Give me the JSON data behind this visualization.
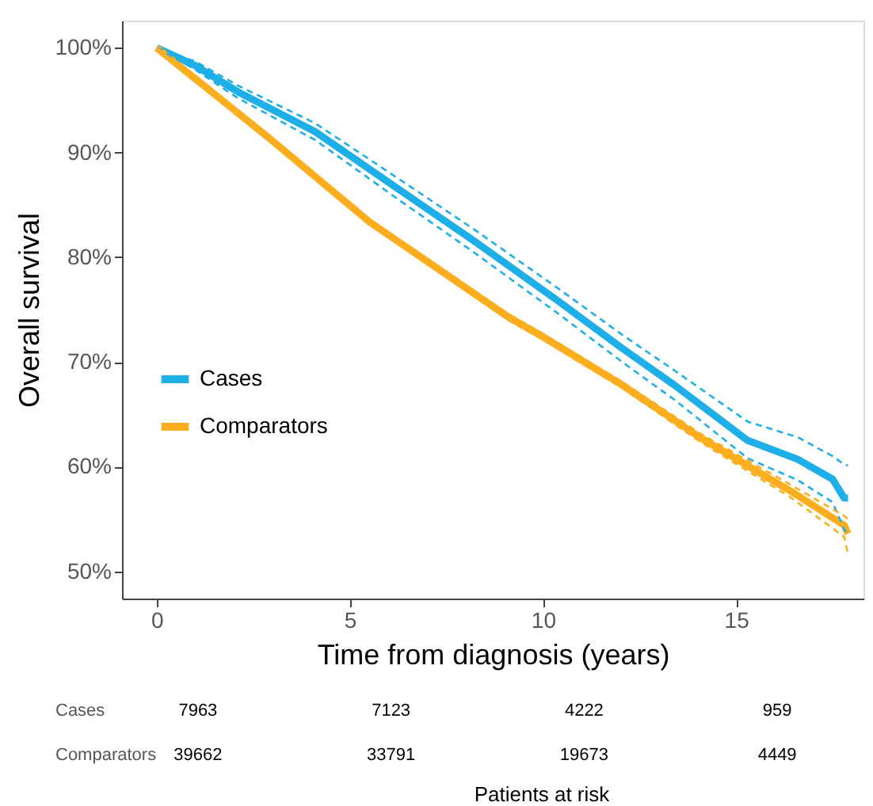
{
  "chart_data": {
    "type": "line",
    "xlabel": "Time from diagnosis (years)",
    "ylabel": "Overall survival",
    "xlim": [
      -0.9,
      18.3
    ],
    "xticks": [
      0,
      5,
      10,
      15
    ],
    "ylim": [
      47.4,
      102.6
    ],
    "yticks": [
      {
        "value": 50,
        "label": "50%"
      },
      {
        "value": 60,
        "label": "60%"
      },
      {
        "value": 70,
        "label": "70%"
      },
      {
        "value": 80,
        "label": "80%"
      },
      {
        "value": 90,
        "label": "90%"
      },
      {
        "value": 100,
        "label": "100%"
      }
    ],
    "series": [
      {
        "name": "Cases",
        "color": "#1eaee8",
        "x": [
          0,
          1,
          2.1,
          4.1,
          6.3,
          8.2,
          10.4,
          12.05,
          13.4,
          15.3,
          16.6,
          17.5,
          17.8,
          17.9
        ],
        "values": [
          100,
          98.3,
          95.8,
          92.0,
          86.4,
          81.6,
          75.8,
          71.3,
          67.8,
          62.5,
          60.7,
          58.8,
          57.0,
          57.0
        ]
      },
      {
        "name": "Comparators",
        "color": "#fcae1e",
        "x": [
          0,
          2.9,
          5.5,
          9.1,
          10,
          12.05,
          14.1,
          16.4,
          17.8,
          17.9
        ],
        "values": [
          100,
          91.4,
          83.4,
          74.3,
          72.4,
          67.8,
          62.7,
          57.7,
          54.4,
          53.6
        ]
      },
      {
        "color": "#1eaee8",
        "line_style": "dashed",
        "x": [
          0,
          1,
          2.1,
          4.1,
          6.3,
          8.2,
          10.4,
          12.05,
          13.4,
          15.3,
          16.6,
          17.5,
          17.8,
          17.9
        ],
        "values": [
          100,
          98.7,
          96.4,
          92.8,
          87.4,
          82.7,
          77.0,
          72.6,
          69.2,
          64.3,
          62.8,
          61.0,
          60.2,
          60.1
        ]
      },
      {
        "color": "#1eaee8",
        "line_style": "dashed",
        "x": [
          0,
          1,
          2.1,
          4.1,
          6.3,
          8.2,
          10.4,
          12.05,
          13.4,
          15.3,
          16.6,
          17.5,
          17.8,
          17.9
        ],
        "values": [
          100,
          97.9,
          95.2,
          91.2,
          85.4,
          80.5,
          74.6,
          70.0,
          66.4,
          60.8,
          58.7,
          56.6,
          54.0,
          53.6
        ]
      },
      {
        "color": "#fcae1e",
        "line_style": "dashed",
        "x": [
          0,
          2.9,
          5.5,
          9.1,
          10,
          12.05,
          14.1,
          16.4,
          17.8,
          17.9
        ],
        "values": [
          100,
          91.6,
          83.6,
          74.6,
          72.7,
          68.1,
          63.1,
          58.3,
          55.3,
          55.0
        ]
      },
      {
        "color": "#fcae1e",
        "line_style": "dashed",
        "x": [
          0,
          2.9,
          5.5,
          9.1,
          10,
          12.05,
          14.1,
          16.4,
          17.8,
          17.9
        ],
        "values": [
          100,
          91.2,
          83.2,
          74.0,
          72.1,
          67.5,
          62.3,
          57.1,
          53.3,
          51.6
        ]
      }
    ],
    "annotations": [
      "Cases",
      "7963",
      "7123",
      "4222",
      "959",
      "Comparators",
      "39662",
      "33791",
      "19673",
      "4449",
      "Patients at risk"
    ],
    "legend": "left",
    "grid": false,
    "line_style": "solid",
    "marker": "none"
  }
}
